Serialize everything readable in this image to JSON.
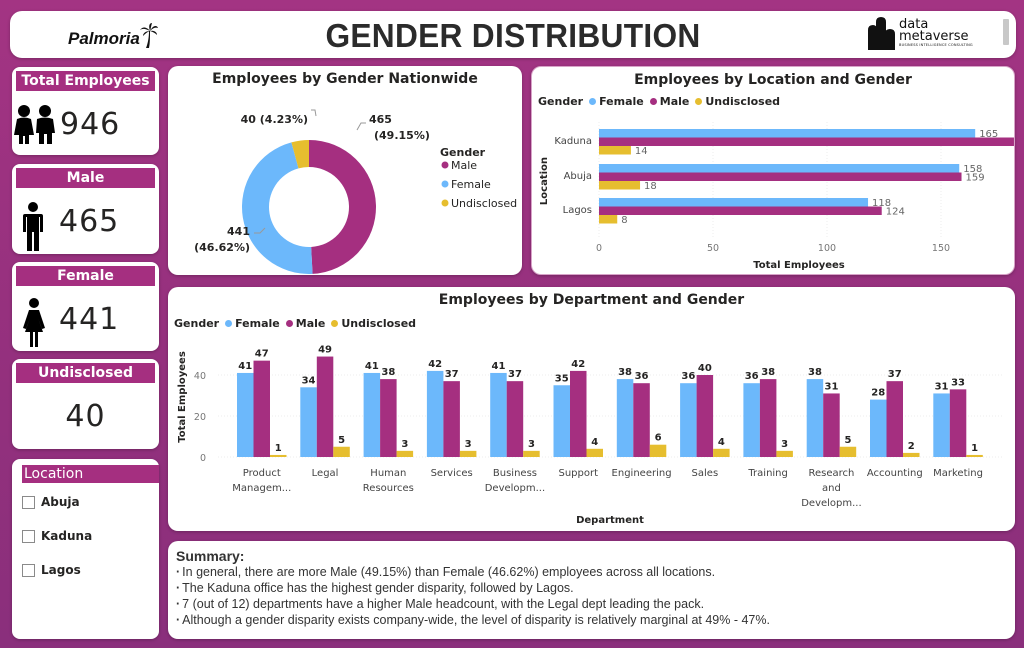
{
  "header": {
    "title": "GENDER DISTRIBUTION",
    "left_logo": "Palmoria",
    "right_logo_line1": "data",
    "right_logo_line2": "metaverse",
    "right_logo_tagline": "BUSINESS INTELLIGENCE CONSULTING"
  },
  "colors": {
    "male": "#a52f80",
    "female": "#6cb8fb",
    "undisclosed": "#e6be2f",
    "background": "#9a317e"
  },
  "kpis": {
    "total": {
      "label": "Total Employees",
      "value": "946",
      "icon": "couple-icon"
    },
    "male": {
      "label": "Male",
      "value": "465",
      "icon": "male-person-icon"
    },
    "female": {
      "label": "Female",
      "value": "441",
      "icon": "female-person-icon"
    },
    "undisclosed": {
      "label": "Undisclosed",
      "value": "40"
    }
  },
  "slicer": {
    "title": "Location",
    "items": [
      {
        "label": "Abuja",
        "checked": false
      },
      {
        "label": "Kaduna",
        "checked": false
      },
      {
        "label": "Lagos",
        "checked": false
      }
    ]
  },
  "summary": {
    "title": "Summary:",
    "points": [
      "In general, there are more Male (49.15%) than Female (46.62%) employees across all locations.",
      "The Kaduna office has the highest gender disparity, followed by Lagos.",
      "7 (out of 12) departments have a higher Male headcount, with the Legal dept leading the pack.",
      "Although a gender disparity exists company-wide, the level of disparity is relatively marginal at 49% - 47%."
    ]
  },
  "chart_data": [
    {
      "type": "pie",
      "title": "Employees by Gender Nationwide",
      "donut": true,
      "legend_title": "Gender",
      "legend_position": "right",
      "slices": [
        {
          "label": "Male",
          "value": 465,
          "percent": "49.15%",
          "data_label": "465 (49.15%)"
        },
        {
          "label": "Female",
          "value": 441,
          "percent": "46.62%",
          "data_label": "441 (46.62%)"
        },
        {
          "label": "Undisclosed",
          "value": 40,
          "percent": "4.23%",
          "data_label": "40 (4.23%)"
        }
      ]
    },
    {
      "type": "bar",
      "orientation": "horizontal",
      "title": "Employees by Location and Gender",
      "legend_title": "Gender",
      "legend_position": "top-left",
      "categories": [
        "Kaduna",
        "Abuja",
        "Lagos"
      ],
      "series": [
        {
          "name": "Female",
          "values": [
            165,
            158,
            118
          ]
        },
        {
          "name": "Male",
          "values": [
            182,
            159,
            124
          ]
        },
        {
          "name": "Undisclosed",
          "values": [
            14,
            18,
            8
          ]
        }
      ],
      "xlabel": "Total Employees",
      "ylabel": "Location",
      "xticks": [
        0,
        50,
        100,
        150
      ],
      "xlim": [
        0,
        190
      ],
      "grid": true
    },
    {
      "type": "bar",
      "orientation": "vertical",
      "title": "Employees by Department and Gender",
      "legend_title": "Gender",
      "legend_position": "top-left",
      "categories": [
        "Product Managem...",
        "Legal",
        "Human Resources",
        "Services",
        "Business Developm...",
        "Support",
        "Engineering",
        "Sales",
        "Training",
        "Research and Developm...",
        "Accounting",
        "Marketing"
      ],
      "series": [
        {
          "name": "Female",
          "values": [
            41,
            34,
            41,
            42,
            41,
            35,
            38,
            36,
            36,
            38,
            28,
            31
          ]
        },
        {
          "name": "Male",
          "values": [
            47,
            49,
            38,
            37,
            37,
            42,
            36,
            40,
            38,
            31,
            37,
            33
          ]
        },
        {
          "name": "Undisclosed",
          "values": [
            1,
            5,
            3,
            3,
            3,
            4,
            6,
            4,
            3,
            5,
            2,
            1
          ]
        }
      ],
      "xlabel": "Department",
      "ylabel": "Total Employees",
      "yticks": [
        0,
        20,
        40
      ],
      "ylim": [
        0,
        52
      ],
      "grid": true
    }
  ]
}
